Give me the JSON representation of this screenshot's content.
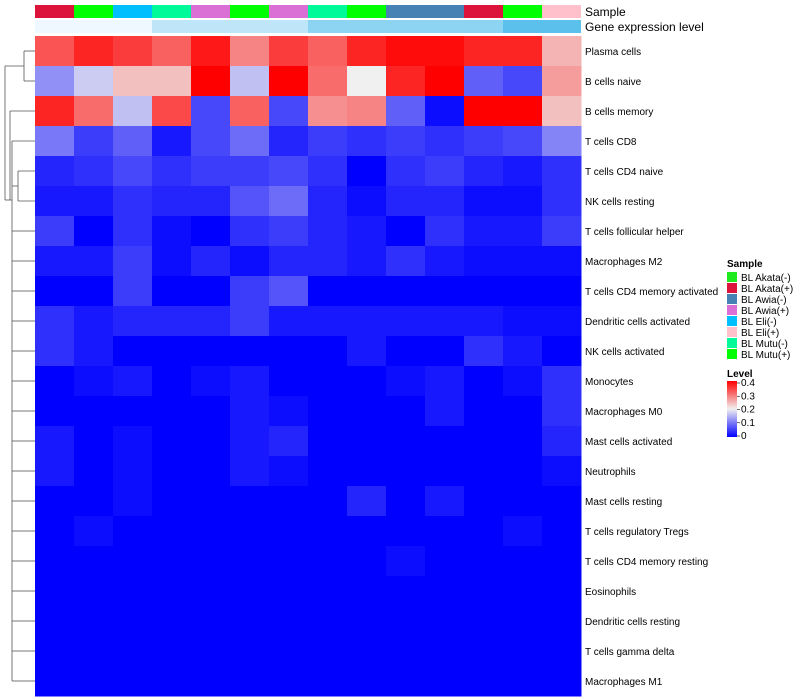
{
  "chart_data": {
    "type": "heatmap",
    "annotation_labels": {
      "sample": "Sample",
      "gene_expression": "Gene expression level"
    },
    "columns": [
      {
        "sample": "BL Akata(+)",
        "gene_expression_level": 0.0
      },
      {
        "sample": "BL Mutu(+)",
        "gene_expression_level": 0.0
      },
      {
        "sample": "BL Eli(-)",
        "gene_expression_level": 0.0
      },
      {
        "sample": "BL Mutu(-)",
        "gene_expression_level": 0.2
      },
      {
        "sample": "BL Awia(+)",
        "gene_expression_level": 0.2
      },
      {
        "sample": "BL Mutu(+)",
        "gene_expression_level": 0.2
      },
      {
        "sample": "BL Awia(+)",
        "gene_expression_level": 0.2
      },
      {
        "sample": "BL Mutu(-)",
        "gene_expression_level": 0.4
      },
      {
        "sample": "BL Mutu(+)",
        "gene_expression_level": 0.4
      },
      {
        "sample": "BL Awia(-)",
        "gene_expression_level": 0.4
      },
      {
        "sample": "BL Awia(-)",
        "gene_expression_level": 0.4
      },
      {
        "sample": "BL Akata(+)",
        "gene_expression_level": 0.4
      },
      {
        "sample": "BL Mutu(+)",
        "gene_expression_level": 0.6
      },
      {
        "sample": "BL Eli(+)",
        "gene_expression_level": 0.6
      }
    ],
    "rows": [
      "Plasma cells",
      "B cells naive",
      "B cells memory",
      "T cells CD8",
      "T cells CD4 naive",
      "NK cells resting",
      "T cells follicular helper",
      "Macrophages M2",
      "T cells CD4 memory activated",
      "Dendritic cells activated",
      "NK cells activated",
      "Monocytes",
      "Macrophages M0",
      "Mast cells activated",
      "Neutrophils",
      "Mast cells resting",
      "T cells regulatory  Tregs",
      "T cells CD4 memory resting",
      "Eosinophils",
      "Dendritic cells resting",
      "T cells gamma delta",
      "Macrophages M1"
    ],
    "values": [
      [
        0.33,
        0.37,
        0.35,
        0.32,
        0.38,
        0.29,
        0.35,
        0.32,
        0.37,
        0.39,
        0.39,
        0.37,
        0.37,
        0.25
      ],
      [
        0.12,
        0.17,
        0.24,
        0.24,
        0.4,
        0.16,
        0.4,
        0.31,
        0.2,
        0.37,
        0.4,
        0.08,
        0.06,
        0.27
      ],
      [
        0.37,
        0.31,
        0.16,
        0.34,
        0.06,
        0.32,
        0.06,
        0.28,
        0.29,
        0.08,
        0.01,
        0.4,
        0.4,
        0.24
      ],
      [
        0.1,
        0.05,
        0.08,
        0.02,
        0.06,
        0.09,
        0.03,
        0.05,
        0.04,
        0.05,
        0.04,
        0.05,
        0.06,
        0.11
      ],
      [
        0.03,
        0.04,
        0.06,
        0.04,
        0.05,
        0.05,
        0.06,
        0.04,
        0.0,
        0.04,
        0.05,
        0.03,
        0.02,
        0.04
      ],
      [
        0.02,
        0.02,
        0.04,
        0.03,
        0.03,
        0.07,
        0.09,
        0.03,
        0.01,
        0.03,
        0.03,
        0.01,
        0.01,
        0.04
      ],
      [
        0.05,
        0.0,
        0.04,
        0.01,
        0.0,
        0.04,
        0.05,
        0.03,
        0.02,
        0.0,
        0.04,
        0.02,
        0.02,
        0.05
      ],
      [
        0.02,
        0.02,
        0.05,
        0.01,
        0.03,
        0.01,
        0.03,
        0.03,
        0.02,
        0.04,
        0.02,
        0.01,
        0.01,
        0.01
      ],
      [
        0.0,
        0.0,
        0.05,
        0.0,
        0.0,
        0.05,
        0.07,
        0.0,
        0.0,
        0.0,
        0.0,
        0.0,
        0.0,
        0.0
      ],
      [
        0.04,
        0.02,
        0.03,
        0.03,
        0.03,
        0.05,
        0.02,
        0.02,
        0.02,
        0.02,
        0.02,
        0.02,
        0.01,
        0.01
      ],
      [
        0.04,
        0.02,
        0.0,
        0.0,
        0.0,
        0.0,
        0.0,
        0.0,
        0.02,
        0.0,
        0.0,
        0.04,
        0.02,
        0.0
      ],
      [
        0.0,
        0.01,
        0.02,
        0.0,
        0.01,
        0.02,
        0.0,
        0.0,
        0.0,
        0.01,
        0.02,
        0.0,
        0.01,
        0.04
      ],
      [
        0.0,
        0.0,
        0.0,
        0.0,
        0.0,
        0.02,
        0.01,
        0.0,
        0.0,
        0.0,
        0.02,
        0.0,
        0.0,
        0.04
      ],
      [
        0.02,
        0.0,
        0.01,
        0.0,
        0.0,
        0.02,
        0.03,
        0.0,
        0.0,
        0.0,
        0.0,
        0.0,
        0.0,
        0.03
      ],
      [
        0.02,
        0.0,
        0.01,
        0.0,
        0.0,
        0.02,
        0.01,
        0.0,
        0.0,
        0.0,
        0.0,
        0.0,
        0.0,
        0.01
      ],
      [
        0.0,
        0.0,
        0.01,
        0.0,
        0.0,
        0.0,
        0.0,
        0.0,
        0.03,
        0.0,
        0.02,
        0.0,
        0.0,
        0.0
      ],
      [
        0.0,
        0.01,
        0.0,
        0.0,
        0.0,
        0.0,
        0.0,
        0.0,
        0.0,
        0.0,
        0.0,
        0.0,
        0.01,
        0.0
      ],
      [
        0.0,
        0.0,
        0.0,
        0.0,
        0.0,
        0.0,
        0.0,
        0.0,
        0.0,
        0.01,
        0.0,
        0.0,
        0.0,
        0.0
      ],
      [
        0.0,
        0.0,
        0.0,
        0.0,
        0.0,
        0.0,
        0.0,
        0.0,
        0.0,
        0.0,
        0.0,
        0.0,
        0.0,
        0.0
      ],
      [
        0.0,
        0.0,
        0.0,
        0.0,
        0.0,
        0.0,
        0.0,
        0.0,
        0.0,
        0.0,
        0.0,
        0.0,
        0.0,
        0.0
      ],
      [
        0.0,
        0.0,
        0.0,
        0.0,
        0.0,
        0.0,
        0.0,
        0.0,
        0.0,
        0.0,
        0.0,
        0.0,
        0.0,
        0.0
      ],
      [
        0.0,
        0.0,
        0.0,
        0.0,
        0.0,
        0.0,
        0.0,
        0.0,
        0.0,
        0.0,
        0.0,
        0.0,
        0.0,
        0.0
      ]
    ],
    "sample_legend": {
      "title": "Sample",
      "entries": [
        {
          "label": "BL Akata(-)",
          "color": "#1eea1e"
        },
        {
          "label": "BL Akata(+)",
          "color": "#dc143c"
        },
        {
          "label": "BL Awia(-)",
          "color": "#4682b4"
        },
        {
          "label": "BL Awia(+)",
          "color": "#da70d6"
        },
        {
          "label": "BL Eli(-)",
          "color": "#00bfff"
        },
        {
          "label": "BL Eli(+)",
          "color": "#ffc0cb"
        },
        {
          "label": "BL Mutu(-)",
          "color": "#00fa9a"
        },
        {
          "label": "BL Mutu(+)",
          "color": "#00ff00"
        }
      ]
    },
    "level_legend": {
      "title": "Level",
      "ticks": [
        "0.4",
        "0.3",
        "0.2",
        "0.1",
        "0"
      ],
      "range": [
        0,
        0.4
      ]
    },
    "gene_expression_range": [
      0,
      0.6
    ],
    "colors": {
      "low": "#0000ff",
      "mid": "#f0f0f0",
      "high": "#ff0000",
      "ge_low": "#f0f8ff",
      "ge_high": "#5bc0eb"
    }
  }
}
